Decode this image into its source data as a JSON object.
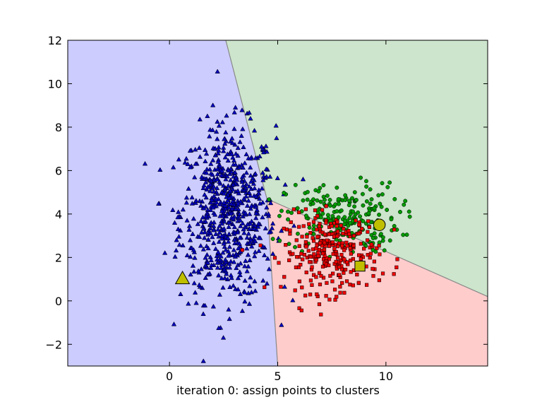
{
  "chart_data": {
    "type": "scatter",
    "title": "",
    "xlabel": "iteration 0:  assign points to clusters",
    "ylabel": "",
    "xlim": [
      -4.7,
      14.7
    ],
    "ylim": [
      -3,
      12
    ],
    "x_ticks": [
      0,
      5,
      10
    ],
    "y_ticks": [
      -2,
      0,
      2,
      4,
      6,
      8,
      10,
      12
    ],
    "grid": false,
    "legend": "none",
    "regions": [
      {
        "cluster": "blue",
        "color": "#ccccff",
        "polygon": [
          [
            -4.7,
            -3
          ],
          [
            5.0,
            -3
          ],
          [
            4.5,
            4.7
          ],
          [
            2.6,
            12
          ],
          [
            -4.7,
            12
          ]
        ]
      },
      {
        "cluster": "green",
        "color": "#cce5cc",
        "polygon": [
          [
            2.6,
            12
          ],
          [
            14.7,
            12
          ],
          [
            14.7,
            0.2
          ],
          [
            4.5,
            4.7
          ]
        ]
      },
      {
        "cluster": "red",
        "color": "#ffcccc",
        "polygon": [
          [
            4.5,
            4.7
          ],
          [
            14.7,
            0.2
          ],
          [
            14.7,
            -3
          ],
          [
            5.0,
            -3
          ]
        ]
      }
    ],
    "boundary_color": "#888888",
    "boundaries": [
      [
        [
          2.6,
          12
        ],
        [
          4.5,
          4.7
        ]
      ],
      [
        [
          4.5,
          4.7
        ],
        [
          5.0,
          -3
        ]
      ],
      [
        [
          4.5,
          4.7
        ],
        [
          14.7,
          0.2
        ]
      ]
    ],
    "clusters": [
      {
        "name": "blue",
        "marker": "triangle",
        "color": "#0000bb",
        "center": [
          2.7,
          4.0
        ],
        "spread": [
          1.1,
          2.0
        ],
        "count": 700
      },
      {
        "name": "green",
        "marker": "circle",
        "color": "#009900",
        "center": [
          8.0,
          3.8
        ],
        "spread": [
          1.3,
          0.8
        ],
        "count": 230
      },
      {
        "name": "red",
        "marker": "square",
        "color": "#ee0000",
        "center": [
          7.5,
          2.2
        ],
        "spread": [
          1.1,
          0.9
        ],
        "count": 280
      }
    ],
    "centroids": [
      {
        "cluster": "blue",
        "marker": "triangle",
        "x": 0.6,
        "y": 1.0,
        "color": "#bfbf00"
      },
      {
        "cluster": "green",
        "marker": "circle",
        "x": 9.7,
        "y": 3.5,
        "color": "#bfbf00"
      },
      {
        "cluster": "red",
        "marker": "square",
        "x": 8.8,
        "y": 1.6,
        "color": "#bfbf00"
      }
    ]
  }
}
